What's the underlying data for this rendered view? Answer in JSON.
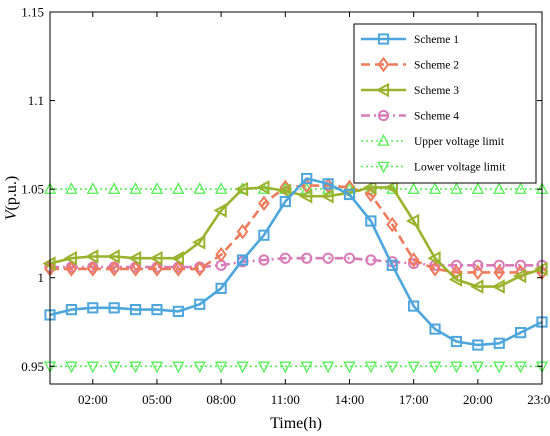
{
  "chart_data": {
    "type": "line",
    "xlabel": "Time(h)",
    "ylabel_italic": "V",
    "ylabel_rest": "(p.u.)",
    "x_tick_labels": [
      "02:00",
      "05:00",
      "08:00",
      "11:00",
      "14:00",
      "17:00",
      "20:00",
      "23:00"
    ],
    "x_tick_hours": [
      2,
      5,
      8,
      11,
      14,
      17,
      20,
      23
    ],
    "y_tick_labels": [
      "0.95",
      "1",
      "1.05",
      "1.1",
      "1.15"
    ],
    "y_tick_values": [
      0.95,
      1.0,
      1.05,
      1.1,
      1.15
    ],
    "xlim": [
      0,
      23
    ],
    "ylim": [
      0.94,
      1.15
    ],
    "grid": false,
    "legend_position": "top-right",
    "x_hours": [
      0,
      1,
      2,
      3,
      4,
      5,
      6,
      7,
      8,
      9,
      10,
      11,
      12,
      13,
      14,
      15,
      16,
      17,
      18,
      19,
      20,
      21,
      22,
      23
    ],
    "series": [
      {
        "name": "Scheme 1",
        "color": "#4da6dc",
        "marker": "square",
        "dash": "solid",
        "values": [
          0.979,
          0.982,
          0.983,
          0.983,
          0.982,
          0.982,
          0.981,
          0.985,
          0.994,
          1.01,
          1.024,
          1.043,
          1.056,
          1.053,
          1.047,
          1.032,
          1.007,
          0.984,
          0.971,
          0.964,
          0.962,
          0.963,
          0.969,
          0.975
        ]
      },
      {
        "name": "Scheme 2",
        "color": "#ee7b5c",
        "marker": "diamond",
        "dash": "dashed",
        "values": [
          1.005,
          1.005,
          1.005,
          1.005,
          1.005,
          1.005,
          1.005,
          1.005,
          1.013,
          1.026,
          1.042,
          1.051,
          1.052,
          1.052,
          1.051,
          1.047,
          1.03,
          1.01,
          1.005,
          1.003,
          1.003,
          1.003,
          1.003,
          1.003
        ]
      },
      {
        "name": "Scheme 3",
        "color": "#9ab32d",
        "marker": "triangle-left",
        "dash": "solid",
        "values": [
          1.008,
          1.011,
          1.012,
          1.012,
          1.011,
          1.011,
          1.011,
          1.02,
          1.038,
          1.05,
          1.051,
          1.049,
          1.046,
          1.046,
          1.048,
          1.051,
          1.051,
          1.032,
          1.011,
          0.999,
          0.995,
          0.995,
          1.001,
          1.005
        ]
      },
      {
        "name": "Scheme 4",
        "color": "#d97bb7",
        "marker": "circle",
        "dash": "dashdot",
        "values": [
          1.006,
          1.006,
          1.006,
          1.006,
          1.006,
          1.006,
          1.006,
          1.006,
          1.007,
          1.009,
          1.01,
          1.011,
          1.011,
          1.011,
          1.011,
          1.01,
          1.009,
          1.008,
          1.007,
          1.007,
          1.007,
          1.007,
          1.007,
          1.007
        ]
      },
      {
        "name": "Upper voltage limit",
        "color": "#55ee55",
        "marker": "triangle-up",
        "dash": "dotted",
        "values": [
          1.05,
          1.05,
          1.05,
          1.05,
          1.05,
          1.05,
          1.05,
          1.05,
          1.05,
          1.05,
          1.05,
          1.05,
          1.05,
          1.05,
          1.05,
          1.05,
          1.05,
          1.05,
          1.05,
          1.05,
          1.05,
          1.05,
          1.05,
          1.05
        ]
      },
      {
        "name": "Lower voltage limit",
        "color": "#55ee55",
        "marker": "triangle-down",
        "dash": "dotted",
        "values": [
          0.95,
          0.95,
          0.95,
          0.95,
          0.95,
          0.95,
          0.95,
          0.95,
          0.95,
          0.95,
          0.95,
          0.95,
          0.95,
          0.95,
          0.95,
          0.95,
          0.95,
          0.95,
          0.95,
          0.95,
          0.95,
          0.95,
          0.95,
          0.95
        ]
      }
    ]
  }
}
